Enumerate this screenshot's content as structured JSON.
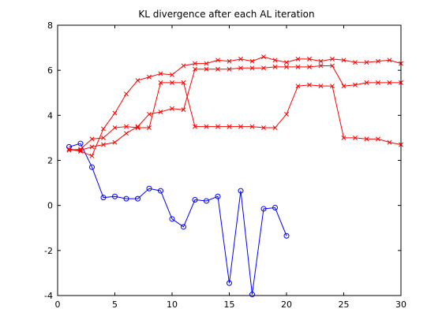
{
  "chart_data": {
    "type": "line",
    "title": "KL divergence after each AL iteration",
    "xlabel": "",
    "ylabel": "",
    "xlim": [
      0,
      30
    ],
    "ylim": [
      -4,
      8
    ],
    "xticks": [
      0,
      5,
      10,
      15,
      20,
      25,
      30
    ],
    "yticks": [
      -4,
      -2,
      0,
      2,
      4,
      6,
      8
    ],
    "grid": false,
    "legend": "none",
    "series": [
      {
        "color": "#0000ff",
        "marker": "circle",
        "x": [
          1,
          2,
          3,
          4,
          5,
          6,
          7,
          8,
          9,
          10,
          11,
          12,
          13,
          14,
          15,
          16,
          17,
          18,
          19,
          20
        ],
        "y": [
          2.6,
          2.75,
          1.7,
          0.35,
          0.4,
          0.3,
          0.3,
          0.75,
          0.65,
          -0.6,
          -0.95,
          0.25,
          0.2,
          0.4,
          -3.45,
          0.65,
          -3.95,
          -0.15,
          -0.1,
          -1.35
        ]
      },
      {
        "color": "#ff0000",
        "marker": "x",
        "x": [
          1,
          2,
          3,
          4,
          5,
          6,
          7,
          8,
          9,
          10,
          11,
          12,
          13,
          14,
          15,
          16,
          17,
          18,
          19,
          20,
          21,
          22,
          23,
          24,
          25,
          26,
          27,
          28,
          29,
          30
        ],
        "y": [
          2.5,
          2.4,
          2.2,
          3.4,
          4.1,
          4.95,
          5.55,
          5.7,
          5.85,
          5.8,
          6.2,
          6.3,
          6.3,
          6.45,
          6.4,
          6.5,
          6.4,
          6.6,
          6.45,
          6.35,
          6.5,
          6.5,
          6.4,
          6.5,
          6.45,
          6.35,
          6.35,
          6.4,
          6.45,
          6.3
        ]
      },
      {
        "color": "#ff0000",
        "marker": "x",
        "x": [
          1,
          2,
          3,
          4,
          5,
          6,
          7,
          8,
          9,
          10,
          11,
          12,
          13,
          14,
          15,
          16,
          17,
          18,
          19,
          20,
          21,
          22,
          23,
          24,
          25,
          26,
          27,
          28,
          29,
          30
        ],
        "y": [
          2.5,
          2.45,
          2.6,
          2.7,
          2.8,
          3.2,
          3.5,
          4.05,
          4.15,
          4.3,
          4.25,
          6.05,
          6.05,
          6.05,
          6.05,
          6.1,
          6.1,
          6.1,
          6.15,
          6.15,
          6.15,
          6.15,
          6.2,
          6.2,
          5.3,
          5.35,
          5.45,
          5.45,
          5.45,
          5.45
        ]
      },
      {
        "color": "#ff0000",
        "marker": "x",
        "x": [
          1,
          2,
          3,
          4,
          5,
          6,
          7,
          8,
          9,
          10,
          11,
          12,
          13,
          14,
          15,
          16,
          17,
          18,
          19,
          20,
          21,
          22,
          23,
          24,
          25,
          26,
          27,
          28,
          29,
          30
        ],
        "y": [
          2.45,
          2.5,
          2.95,
          3.0,
          3.45,
          3.5,
          3.45,
          3.45,
          5.45,
          5.45,
          5.45,
          3.5,
          3.5,
          3.5,
          3.5,
          3.5,
          3.5,
          3.45,
          3.45,
          4.05,
          5.3,
          5.35,
          5.3,
          5.3,
          3.0,
          3.0,
          2.95,
          2.95,
          2.8,
          2.7
        ]
      }
    ]
  }
}
